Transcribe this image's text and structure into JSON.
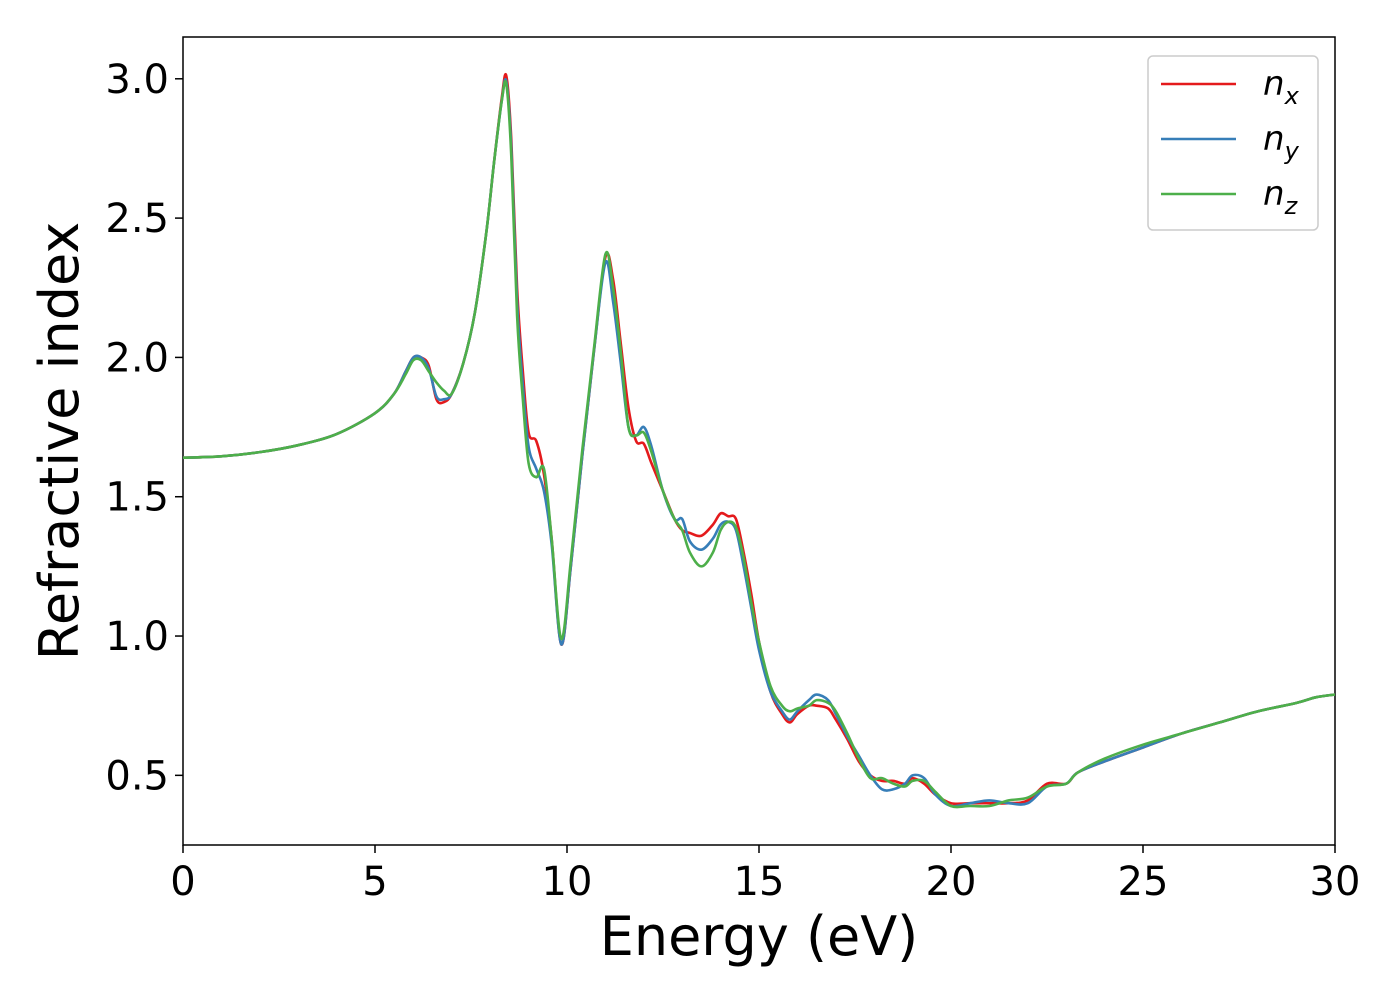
{
  "chart_data": {
    "type": "line",
    "xlabel": "Energy (eV)",
    "ylabel": "Refractive index",
    "xlim": [
      0,
      30
    ],
    "ylim": [
      0.25,
      3.15
    ],
    "xticks": [
      0,
      5,
      10,
      15,
      20,
      25,
      30
    ],
    "yticks": [
      0.5,
      1.0,
      1.5,
      2.0,
      2.5,
      3.0
    ],
    "xtick_labels": [
      "0",
      "5",
      "10",
      "15",
      "20",
      "25",
      "30"
    ],
    "ytick_labels": [
      "0.5",
      "1.0",
      "1.5",
      "2.0",
      "2.5",
      "3.0"
    ],
    "grid": false,
    "legend_position": "top-right",
    "series": [
      {
        "name": "n",
        "subscript": "x",
        "color": "#e41a1c",
        "x": [
          0,
          1,
          2,
          3,
          4,
          5,
          5.5,
          5.8,
          6.0,
          6.2,
          6.4,
          6.6,
          6.8,
          7.0,
          7.3,
          7.6,
          7.9,
          8.1,
          8.3,
          8.42,
          8.55,
          8.7,
          8.85,
          9.0,
          9.2,
          9.4,
          9.6,
          9.85,
          10.1,
          10.4,
          10.7,
          11.0,
          11.2,
          11.4,
          11.6,
          11.8,
          12.0,
          12.2,
          12.5,
          12.8,
          13.0,
          13.2,
          13.5,
          13.8,
          14.0,
          14.2,
          14.4,
          14.6,
          14.8,
          15.0,
          15.3,
          15.6,
          15.8,
          16.0,
          16.3,
          16.5,
          16.8,
          17.0,
          17.3,
          17.6,
          17.9,
          18.2,
          18.5,
          18.8,
          19.0,
          19.3,
          19.6,
          20.0,
          20.5,
          21.0,
          21.5,
          22.0,
          22.5,
          23.0,
          23.3,
          24.0,
          25.0,
          26.0,
          27.0,
          28.0,
          29.0,
          29.5,
          30.0
        ],
        "y": [
          1.64,
          1.645,
          1.66,
          1.685,
          1.725,
          1.8,
          1.87,
          1.95,
          2.0,
          2.0,
          1.97,
          1.85,
          1.84,
          1.87,
          1.98,
          2.16,
          2.45,
          2.7,
          2.93,
          3.01,
          2.78,
          2.25,
          1.95,
          1.73,
          1.7,
          1.58,
          1.35,
          0.97,
          1.25,
          1.65,
          2.02,
          2.36,
          2.28,
          2.05,
          1.82,
          1.7,
          1.69,
          1.62,
          1.52,
          1.42,
          1.38,
          1.37,
          1.36,
          1.4,
          1.44,
          1.43,
          1.42,
          1.3,
          1.15,
          0.98,
          0.8,
          0.72,
          0.69,
          0.72,
          0.75,
          0.75,
          0.74,
          0.7,
          0.63,
          0.55,
          0.5,
          0.48,
          0.48,
          0.47,
          0.49,
          0.47,
          0.43,
          0.4,
          0.4,
          0.4,
          0.4,
          0.41,
          0.47,
          0.47,
          0.51,
          0.55,
          0.6,
          0.65,
          0.69,
          0.73,
          0.76,
          0.78,
          0.79
        ]
      },
      {
        "name": "n",
        "subscript": "y",
        "color": "#377eb8",
        "x": [
          0,
          1,
          2,
          3,
          4,
          5,
          5.5,
          5.8,
          6.0,
          6.2,
          6.4,
          6.6,
          6.8,
          7.0,
          7.3,
          7.6,
          7.9,
          8.1,
          8.3,
          8.42,
          8.55,
          8.7,
          8.85,
          9.0,
          9.2,
          9.4,
          9.6,
          9.85,
          10.1,
          10.4,
          10.7,
          11.0,
          11.2,
          11.4,
          11.6,
          11.8,
          12.0,
          12.2,
          12.5,
          12.8,
          13.0,
          13.2,
          13.5,
          13.8,
          14.0,
          14.2,
          14.4,
          14.6,
          14.8,
          15.0,
          15.3,
          15.6,
          15.8,
          16.0,
          16.3,
          16.5,
          16.8,
          17.0,
          17.3,
          17.6,
          17.9,
          18.2,
          18.5,
          18.8,
          19.0,
          19.3,
          19.6,
          20.0,
          20.5,
          21.0,
          21.5,
          22.0,
          22.5,
          23.0,
          23.3,
          24.0,
          25.0,
          26.0,
          27.0,
          28.0,
          29.0,
          29.5,
          30.0
        ],
        "y": [
          1.64,
          1.645,
          1.66,
          1.685,
          1.725,
          1.8,
          1.87,
          1.95,
          2.0,
          2.0,
          1.96,
          1.86,
          1.85,
          1.87,
          1.98,
          2.16,
          2.45,
          2.7,
          2.92,
          2.99,
          2.75,
          2.2,
          1.9,
          1.68,
          1.6,
          1.52,
          1.33,
          0.97,
          1.25,
          1.65,
          2.02,
          2.34,
          2.2,
          1.98,
          1.75,
          1.72,
          1.75,
          1.68,
          1.52,
          1.42,
          1.42,
          1.34,
          1.31,
          1.35,
          1.4,
          1.41,
          1.38,
          1.25,
          1.1,
          0.95,
          0.8,
          0.73,
          0.7,
          0.73,
          0.77,
          0.79,
          0.77,
          0.72,
          0.64,
          0.57,
          0.5,
          0.45,
          0.45,
          0.47,
          0.5,
          0.49,
          0.43,
          0.39,
          0.4,
          0.41,
          0.4,
          0.4,
          0.46,
          0.47,
          0.51,
          0.55,
          0.6,
          0.65,
          0.69,
          0.73,
          0.76,
          0.78,
          0.79
        ]
      },
      {
        "name": "n",
        "subscript": "z",
        "color": "#4daf4a",
        "x": [
          0,
          1,
          2,
          3,
          4,
          5,
          5.5,
          5.8,
          6.0,
          6.2,
          6.4,
          6.6,
          6.8,
          7.0,
          7.3,
          7.6,
          7.9,
          8.1,
          8.3,
          8.42,
          8.55,
          8.7,
          8.85,
          9.0,
          9.2,
          9.4,
          9.6,
          9.85,
          10.1,
          10.4,
          10.7,
          11.0,
          11.2,
          11.4,
          11.6,
          11.8,
          12.0,
          12.2,
          12.5,
          12.8,
          13.0,
          13.2,
          13.5,
          13.8,
          14.0,
          14.2,
          14.4,
          14.6,
          14.8,
          15.0,
          15.3,
          15.6,
          15.8,
          16.0,
          16.3,
          16.5,
          16.8,
          17.0,
          17.3,
          17.6,
          17.9,
          18.2,
          18.5,
          18.8,
          19.0,
          19.3,
          19.6,
          20.0,
          20.5,
          21.0,
          21.5,
          22.0,
          22.5,
          23.0,
          23.3,
          24.0,
          25.0,
          26.0,
          27.0,
          28.0,
          29.0,
          29.5,
          30.0
        ],
        "y": [
          1.64,
          1.645,
          1.66,
          1.685,
          1.725,
          1.8,
          1.87,
          1.94,
          1.99,
          1.99,
          1.95,
          1.91,
          1.88,
          1.87,
          1.98,
          2.16,
          2.45,
          2.7,
          2.92,
          2.98,
          2.72,
          2.15,
          1.85,
          1.62,
          1.57,
          1.6,
          1.35,
          0.99,
          1.27,
          1.67,
          2.03,
          2.37,
          2.25,
          2.02,
          1.75,
          1.72,
          1.73,
          1.66,
          1.52,
          1.42,
          1.38,
          1.3,
          1.25,
          1.3,
          1.38,
          1.41,
          1.39,
          1.28,
          1.12,
          0.98,
          0.82,
          0.75,
          0.73,
          0.74,
          0.75,
          0.77,
          0.76,
          0.73,
          0.65,
          0.56,
          0.49,
          0.49,
          0.47,
          0.46,
          0.48,
          0.48,
          0.44,
          0.39,
          0.39,
          0.39,
          0.41,
          0.42,
          0.46,
          0.47,
          0.51,
          0.56,
          0.61,
          0.65,
          0.69,
          0.73,
          0.76,
          0.78,
          0.79
        ]
      }
    ]
  }
}
